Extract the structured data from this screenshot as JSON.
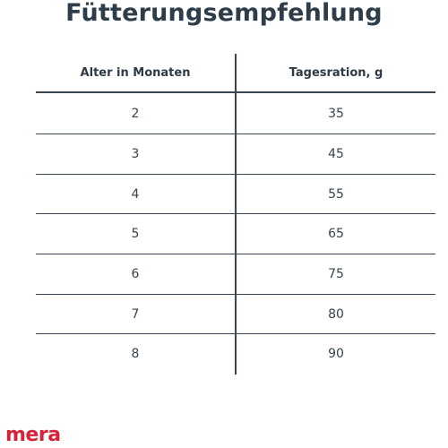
{
  "title": "Fütterungsempfehlung",
  "table": {
    "headers": [
      "Alter in Monaten",
      "Tagesration, g"
    ],
    "rows": [
      [
        "2",
        "35"
      ],
      [
        "3",
        "45"
      ],
      [
        "4",
        "55"
      ],
      [
        "5",
        "65"
      ],
      [
        "6",
        "75"
      ],
      [
        "7",
        "80"
      ],
      [
        "8",
        "90"
      ]
    ]
  },
  "logo": {
    "text": "mera",
    "color": "#d6233a"
  }
}
